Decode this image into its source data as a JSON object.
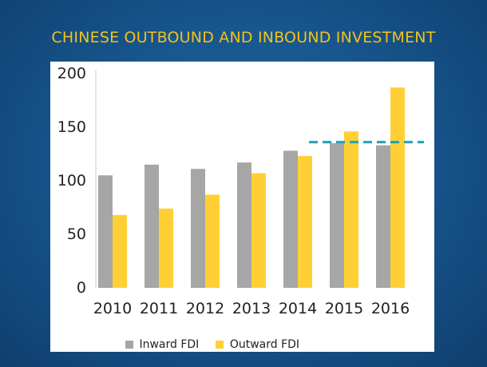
{
  "slide": {
    "title": "CHINESE OUTBOUND AND INBOUND INVESTMENT"
  },
  "chart_data": {
    "type": "bar",
    "categories": [
      "2010",
      "2011",
      "2012",
      "2013",
      "2014",
      "2015",
      "2016"
    ],
    "series": [
      {
        "name": "Inward FDI",
        "color": "#a6a6a6",
        "values": [
          105,
          115,
          111,
          117,
          128,
          135,
          133
        ]
      },
      {
        "name": "Outward FDI",
        "color": "#ffd035",
        "values": [
          68,
          74,
          87,
          107,
          123,
          146,
          187
        ]
      }
    ],
    "reference_line": {
      "value": 136,
      "color": "#1e9fb5",
      "style": "dashed",
      "from_category": "2015"
    },
    "yticks": [
      0,
      50,
      100,
      150,
      200
    ],
    "ylim": [
      0,
      200
    ],
    "grid": false,
    "legend_position": "bottom"
  }
}
